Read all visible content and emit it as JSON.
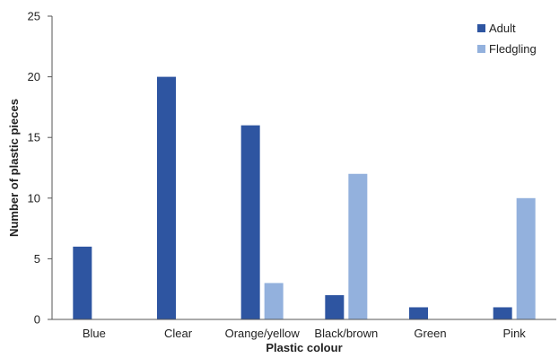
{
  "chart_data": {
    "type": "bar",
    "xlabel": "Plastic colour",
    "ylabel": "Number of plastic pieces",
    "ylim": [
      0,
      25
    ],
    "yticks": [
      0,
      5,
      10,
      15,
      20,
      25
    ],
    "categories": [
      "Blue",
      "Clear",
      "Orange/yellow",
      "Black/brown",
      "Green",
      "Pink"
    ],
    "series": [
      {
        "name": "Adult",
        "color": "#2e55a1",
        "values": [
          6,
          20,
          16,
          2,
          1,
          1
        ]
      },
      {
        "name": "Fledgling",
        "color": "#93b1dd",
        "values": [
          0,
          0,
          3,
          12,
          0,
          10
        ]
      }
    ],
    "legend_position": "top-right",
    "grid": false
  }
}
